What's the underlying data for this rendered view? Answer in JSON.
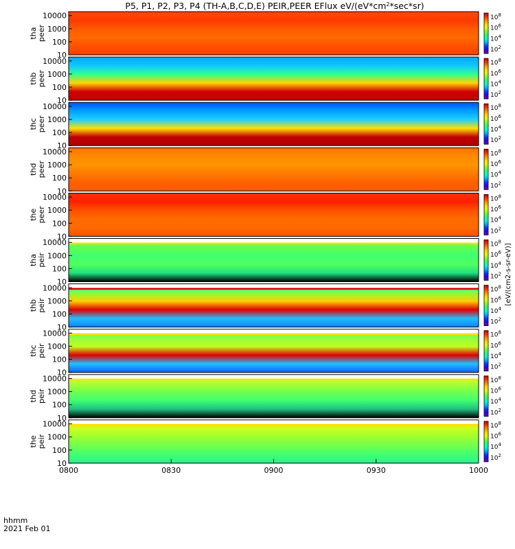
{
  "page": {
    "title": "P5, P1, P2, P3, P4 (TH-A,B,C,D,E) PEIR,PEER EFlux eV/(eV*cm",
    "title_sup": "2",
    "title_tail": "*sec*sr)",
    "time_caption_1": "hhmm",
    "time_caption_2": "2021 Feb 01",
    "colorbar_title": "[eV/(cm2-s-sr-eV)]"
  },
  "chart_data": {
    "type": "heatmap",
    "title": "P5, P1, P2, P3, P4 (TH-A,B,C,D,E) PEIR,PEER EFlux eV/(eV*cm2*sec*sr)",
    "x_ticks": [
      "0800",
      "0830",
      "0900",
      "0930",
      "1000"
    ],
    "xlim": [
      "0800",
      "1000"
    ],
    "y_scale": "log",
    "ylim": [
      10,
      20000
    ],
    "colorbar_scale": "log",
    "panels": [
      {
        "id": "tha-peer",
        "label": [
          "tha",
          "peer"
        ],
        "yticks": [
          "10000",
          "1000",
          "100",
          "10"
        ],
        "cbar_ticks": [
          "10",
          "10",
          "10",
          "10"
        ],
        "cbar_exps": [
          "8",
          "6",
          "4",
          "2"
        ],
        "cbar_range": [
          1,
          100000000
        ]
      },
      {
        "id": "thb-peer",
        "label": [
          "thb",
          "peer"
        ],
        "yticks": [
          "10000",
          "1000",
          "100",
          "10"
        ],
        "cbar_ticks": [
          "10",
          "10",
          "10",
          "10"
        ],
        "cbar_exps": [
          "8",
          "6",
          "4",
          "2"
        ],
        "cbar_range": [
          1,
          100000000
        ]
      },
      {
        "id": "thc-peer",
        "label": [
          "thc",
          "peer"
        ],
        "yticks": [
          "10000",
          "1000",
          "100",
          "10"
        ],
        "cbar_ticks": [
          "10",
          "10",
          "10",
          "10"
        ],
        "cbar_exps": [
          "8",
          "6",
          "4",
          "2"
        ],
        "cbar_range": [
          1,
          100000000
        ]
      },
      {
        "id": "thd-peer",
        "label": [
          "thd",
          "peer"
        ],
        "yticks": [
          "10000",
          "1000",
          "100",
          "10"
        ],
        "cbar_ticks": [
          "10",
          "10",
          "10",
          "10"
        ],
        "cbar_exps": [
          "8",
          "6",
          "4",
          "2"
        ],
        "cbar_range": [
          1,
          100000000
        ]
      },
      {
        "id": "the-peer",
        "label": [
          "the",
          "peer"
        ],
        "yticks": [
          "10000",
          "1000",
          "100",
          "10"
        ],
        "cbar_ticks": [
          "10",
          "10",
          "10",
          "10"
        ],
        "cbar_exps": [
          "8",
          "6",
          "4",
          "2"
        ],
        "cbar_range": [
          1,
          100000000
        ]
      },
      {
        "id": "tha-peir",
        "label": [
          "tha",
          "peir"
        ],
        "yticks": [
          "10000",
          "1000",
          "100",
          "10"
        ],
        "cbar_ticks": [
          "10",
          "10",
          "10",
          "10"
        ],
        "cbar_exps": [
          "8",
          "6",
          "4",
          "2"
        ],
        "cbar_range": [
          1,
          100000000
        ]
      },
      {
        "id": "thb-peir",
        "label": [
          "thb",
          "peir"
        ],
        "yticks": [
          "10000",
          "1000",
          "100",
          "10"
        ],
        "cbar_ticks": [
          "10",
          "10",
          "10",
          "10"
        ],
        "cbar_exps": [
          "8",
          "6",
          "4",
          "2"
        ],
        "cbar_range": [
          1,
          100000000
        ]
      },
      {
        "id": "thc-peir",
        "label": [
          "thc",
          "peir"
        ],
        "yticks": [
          "10000",
          "1000",
          "100",
          "10"
        ],
        "cbar_ticks": [
          "10",
          "10",
          "10",
          "10"
        ],
        "cbar_exps": [
          "8",
          "6",
          "4",
          "2"
        ],
        "cbar_range": [
          1,
          100000000
        ]
      },
      {
        "id": "thd-peir",
        "label": [
          "thd",
          "peir"
        ],
        "yticks": [
          "10000",
          "1000",
          "100",
          "10"
        ],
        "cbar_ticks": [
          "10",
          "10",
          "10",
          "10"
        ],
        "cbar_exps": [
          "8",
          "6",
          "4",
          "2"
        ],
        "cbar_range": [
          1,
          100000000
        ]
      },
      {
        "id": "the-peir",
        "label": [
          "the",
          "peir"
        ],
        "yticks": [
          "10000",
          "1000",
          "100",
          "10"
        ],
        "cbar_ticks": [
          "10",
          "10",
          "10",
          "10"
        ],
        "cbar_exps": [
          "8",
          "6",
          "4",
          "2"
        ],
        "cbar_range": [
          1,
          100000000
        ]
      }
    ],
    "colormap": [
      "#7a00a8",
      "#2a00ff",
      "#0040ff",
      "#00b4ff",
      "#00ffd0",
      "#2cff6e",
      "#7dff2a",
      "#dcff00",
      "#ffd400",
      "#ff8a00",
      "#ff3000",
      "#c80000"
    ]
  }
}
